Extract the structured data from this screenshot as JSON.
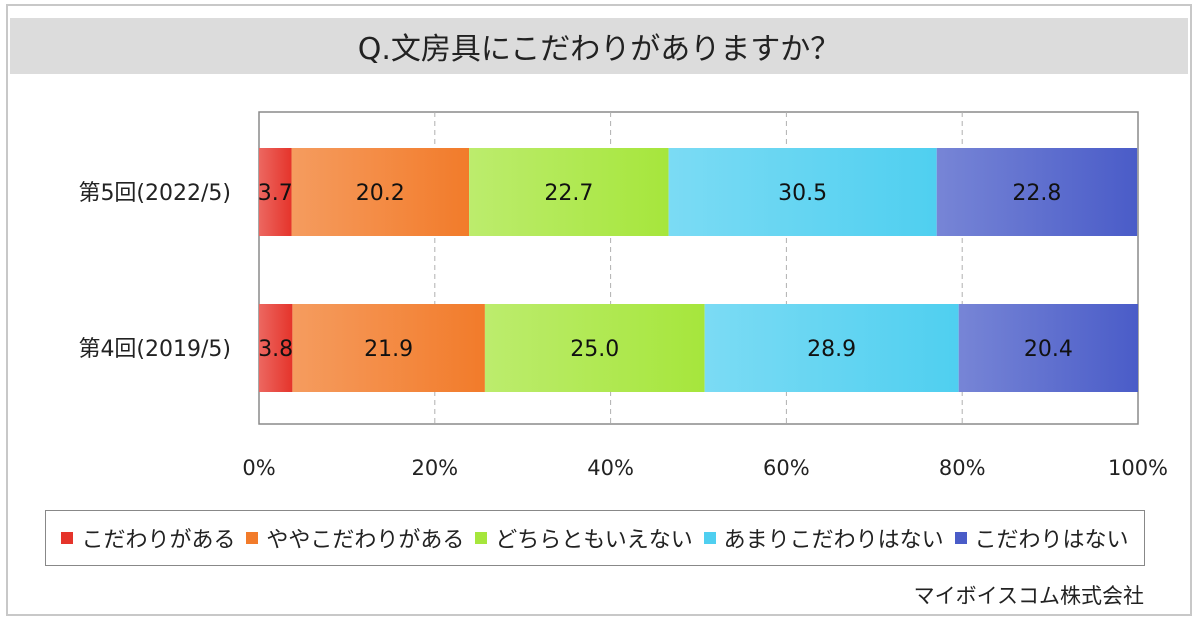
{
  "title": "Q.文房具にこだわりがありますか？",
  "source": "マイボイスコム株式会社",
  "colors": {
    "strongly_yes": "#e5342b",
    "somewhat_yes": "#f27b2a",
    "neutral": "#a6e63c",
    "not_much": "#4fcff0",
    "no": "#4a5cc8"
  },
  "chart_data": {
    "type": "bar",
    "orientation": "horizontal",
    "stacked": "percent",
    "categories": [
      "第5回(2022/5)",
      "第4回(2019/5)"
    ],
    "series": [
      {
        "name": "こだわりがある",
        "values": [
          3.7,
          3.8
        ],
        "color_key": "strongly_yes"
      },
      {
        "name": "ややこだわりがある",
        "values": [
          20.2,
          21.9
        ],
        "color_key": "somewhat_yes"
      },
      {
        "name": "どちらともいえない",
        "values": [
          22.7,
          25.0
        ],
        "color_key": "neutral"
      },
      {
        "name": "あまりこだわりはない",
        "values": [
          30.5,
          28.9
        ],
        "color_key": "not_much"
      },
      {
        "name": "こだわりはない",
        "values": [
          22.8,
          20.4
        ],
        "color_key": "no"
      }
    ],
    "value_labels": [
      [
        "3.7",
        "20.2",
        "22.7",
        "30.5",
        "22.8"
      ],
      [
        "3.8",
        "21.9",
        "25.0",
        "28.9",
        "20.4"
      ]
    ],
    "xlim": [
      0,
      100
    ],
    "xticks": [
      "0%",
      "20%",
      "40%",
      "60%",
      "80%",
      "100%"
    ],
    "grid": "vertical dashed",
    "legend": "bottom"
  }
}
